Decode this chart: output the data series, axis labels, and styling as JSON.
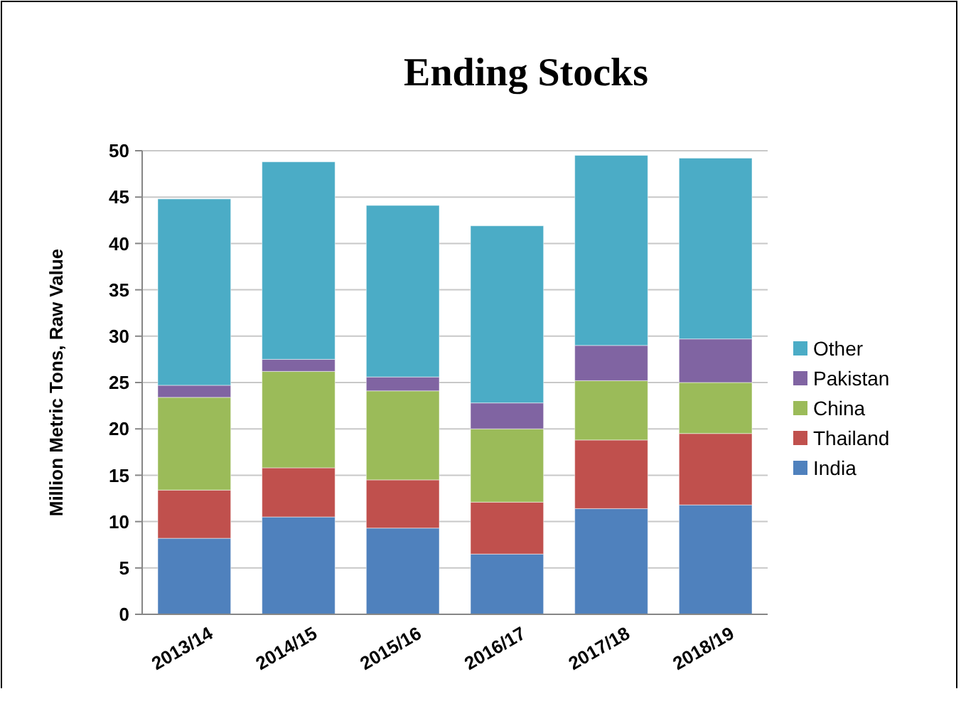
{
  "chart_data": {
    "type": "bar",
    "title": "Ending Stocks",
    "ylabel": "Million Metric Tons, Raw Value",
    "categories": [
      "2013/14",
      "2014/15",
      "2015/16",
      "2016/17",
      "2017/18",
      "2018/19"
    ],
    "stacked": true,
    "series": [
      {
        "name": "India",
        "color": "#4f81bd",
        "values": [
          8.2,
          10.5,
          9.3,
          6.5,
          11.4,
          11.8
        ]
      },
      {
        "name": "Thailand",
        "color": "#c0504d",
        "values": [
          5.2,
          5.3,
          5.2,
          5.6,
          7.4,
          7.7
        ]
      },
      {
        "name": "China",
        "color": "#9bbb59",
        "values": [
          10.0,
          10.4,
          9.6,
          7.9,
          6.4,
          5.5
        ]
      },
      {
        "name": "Pakistan",
        "color": "#8064a2",
        "values": [
          1.3,
          1.3,
          1.5,
          2.8,
          3.8,
          4.7
        ]
      },
      {
        "name": "Other",
        "color": "#4bacc6",
        "values": [
          20.1,
          21.3,
          18.5,
          19.1,
          20.5,
          19.5
        ]
      }
    ],
    "ylim": [
      0,
      50
    ],
    "yticks": [
      0,
      5,
      10,
      15,
      20,
      25,
      30,
      35,
      40,
      45,
      50
    ],
    "grid": "y",
    "legend": "right"
  }
}
